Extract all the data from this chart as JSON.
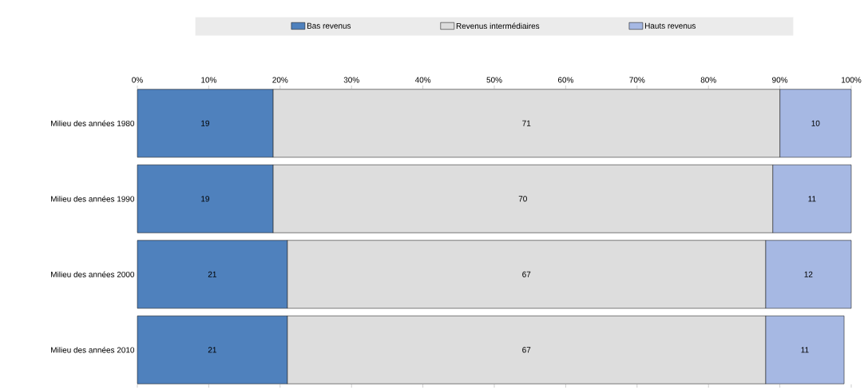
{
  "chart_data": {
    "type": "bar",
    "orientation": "horizontal",
    "stacked": true,
    "data_labels": true,
    "legend": "top",
    "categories": [
      "Milieu des années 1980",
      "Milieu des années 1990",
      "Milieu des années 2000",
      "Milieu des années 2010"
    ],
    "series": [
      {
        "name": "Bas revenus",
        "color": "#4f81bd",
        "values": [
          19,
          19,
          21,
          21
        ]
      },
      {
        "name": "Revenus intermédiaires",
        "color": "#dddddd",
        "values": [
          71,
          70,
          67,
          67
        ]
      },
      {
        "name": "Hauts revenus",
        "color": "#a6b8e3",
        "values": [
          10,
          11,
          12,
          11
        ]
      }
    ],
    "xlim": [
      0,
      100
    ],
    "xticks": [
      {
        "value": 0,
        "label": "0%"
      },
      {
        "value": 10,
        "label": "10%"
      },
      {
        "value": 20,
        "label": "20%"
      },
      {
        "value": 30,
        "label": "30%"
      },
      {
        "value": 40,
        "label": "40%"
      },
      {
        "value": 50,
        "label": "50%"
      },
      {
        "value": 60,
        "label": "60%"
      },
      {
        "value": 70,
        "label": "70%"
      },
      {
        "value": 80,
        "label": "80%"
      },
      {
        "value": 90,
        "label": "90%"
      },
      {
        "value": 100,
        "label": "100%"
      }
    ]
  }
}
